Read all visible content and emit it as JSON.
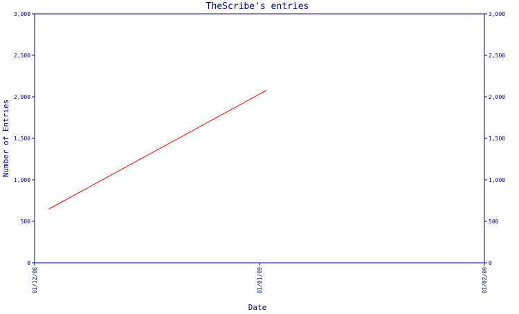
{
  "chart_data": {
    "type": "line",
    "title": "TheScribe's entries",
    "xlabel": "Date",
    "ylabel": "Number of Entries",
    "x_ticks": [
      "01/12/08",
      "01/01/09",
      "01/02/09"
    ],
    "y_ticks": [
      "0",
      "500",
      "1,000",
      "1,500",
      "2,000",
      "2,500",
      "3,000"
    ],
    "y_tick_values": [
      0,
      500,
      1000,
      1500,
      2000,
      2500,
      3000
    ],
    "ylim": [
      0,
      3000
    ],
    "xlim": [
      "2008-12-01",
      "2009-02-01"
    ],
    "series": [
      {
        "x": [
          "2008-12-03",
          "2009-01-02"
        ],
        "y": [
          650,
          2080
        ]
      }
    ],
    "secondary_y_axis": true,
    "grid": false,
    "legend": "none"
  },
  "colors": {
    "axis": "#000080",
    "text": "#000080",
    "series": "#ff0000",
    "background": "#ffffff"
  }
}
